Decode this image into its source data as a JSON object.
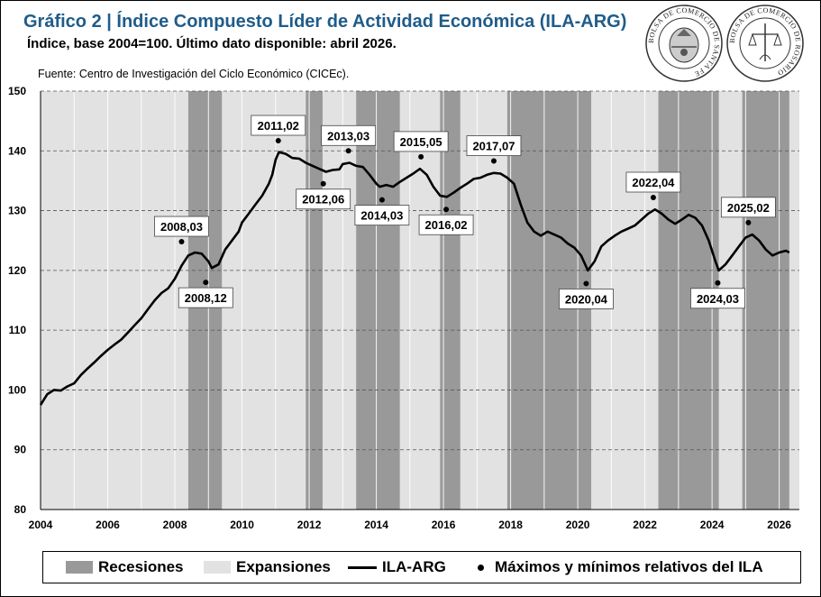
{
  "header": {
    "title": "Gráfico 2 | Índice Compuesto Líder de Actividad Económica (ILA-ARG)",
    "subtitle": "Índice, base 2004=100. Último dato disponible: abril 2026.",
    "source": "Fuente: Centro de Investigación del Ciclo Económico (CICEc)."
  },
  "seals": {
    "seal1_text": "BOLSA DE COMERCIO DE SANTA FE",
    "seal2_text": "BOLSA DE COMERCIO DE ROSARIO"
  },
  "colors": {
    "recession": "#999999",
    "expansion": "#e2e2e2",
    "line": "#000000",
    "title": "#1f5c8a"
  },
  "legend": {
    "recessions": "Recesiones",
    "expansions": "Expansiones",
    "line": "ILA-ARG",
    "points": "Máximos y mínimos relativos del ILA"
  },
  "chart_data": {
    "type": "line",
    "xlim": [
      2004,
      2026.6
    ],
    "ylim": [
      80,
      150
    ],
    "x_ticks": [
      "2004",
      "2006",
      "2008",
      "2010",
      "2012",
      "2014",
      "2016",
      "2018",
      "2020",
      "2022",
      "2024",
      "2026"
    ],
    "y_ticks": [
      "80",
      "90",
      "100",
      "110",
      "120",
      "130",
      "140",
      "150"
    ],
    "grid": "horizontal dashed",
    "legend_position": "bottom",
    "recessions": [
      [
        2008.4,
        2009.4
      ],
      [
        2011.9,
        2012.4
      ],
      [
        2013.4,
        2014.7
      ],
      [
        2015.9,
        2016.5
      ],
      [
        2017.9,
        2020.4
      ],
      [
        2022.4,
        2024.2
      ],
      [
        2024.9,
        2026.3
      ]
    ],
    "series": [
      {
        "name": "ILA-ARG",
        "points": [
          [
            2004.0,
            97.5
          ],
          [
            2004.2,
            99.3
          ],
          [
            2004.4,
            100.0
          ],
          [
            2004.6,
            99.9
          ],
          [
            2004.8,
            100.6
          ],
          [
            2005.0,
            101.1
          ],
          [
            2005.2,
            102.5
          ],
          [
            2005.4,
            103.6
          ],
          [
            2005.6,
            104.6
          ],
          [
            2005.8,
            105.7
          ],
          [
            2006.0,
            106.7
          ],
          [
            2006.2,
            107.6
          ],
          [
            2006.4,
            108.4
          ],
          [
            2006.6,
            109.6
          ],
          [
            2006.8,
            110.8
          ],
          [
            2007.0,
            112.0
          ],
          [
            2007.2,
            113.5
          ],
          [
            2007.4,
            115.0
          ],
          [
            2007.6,
            116.2
          ],
          [
            2007.8,
            117.0
          ],
          [
            2008.0,
            118.6
          ],
          [
            2008.2,
            120.8
          ],
          [
            2008.4,
            122.5
          ],
          [
            2008.6,
            123.0
          ],
          [
            2008.8,
            122.8
          ],
          [
            2009.0,
            121.5
          ],
          [
            2009.1,
            120.4
          ],
          [
            2009.3,
            121.0
          ],
          [
            2009.5,
            123.5
          ],
          [
            2009.7,
            125.0
          ],
          [
            2009.9,
            126.5
          ],
          [
            2010.0,
            128.0
          ],
          [
            2010.2,
            129.5
          ],
          [
            2010.4,
            131.0
          ],
          [
            2010.6,
            132.5
          ],
          [
            2010.8,
            134.5
          ],
          [
            2010.9,
            136.0
          ],
          [
            2011.0,
            138.5
          ],
          [
            2011.1,
            139.8
          ],
          [
            2011.3,
            139.5
          ],
          [
            2011.5,
            138.8
          ],
          [
            2011.7,
            138.7
          ],
          [
            2011.9,
            138.0
          ],
          [
            2012.1,
            137.5
          ],
          [
            2012.3,
            137.0
          ],
          [
            2012.5,
            136.5
          ],
          [
            2012.7,
            136.8
          ],
          [
            2012.9,
            136.9
          ],
          [
            2013.0,
            137.8
          ],
          [
            2013.2,
            138.0
          ],
          [
            2013.4,
            137.5
          ],
          [
            2013.6,
            137.3
          ],
          [
            2013.8,
            136.0
          ],
          [
            2014.0,
            134.5
          ],
          [
            2014.1,
            134.0
          ],
          [
            2014.3,
            134.3
          ],
          [
            2014.5,
            134.0
          ],
          [
            2014.7,
            134.8
          ],
          [
            2014.9,
            135.5
          ],
          [
            2015.1,
            136.2
          ],
          [
            2015.3,
            137.0
          ],
          [
            2015.5,
            136.0
          ],
          [
            2015.7,
            134.0
          ],
          [
            2015.9,
            132.5
          ],
          [
            2016.1,
            132.3
          ],
          [
            2016.3,
            133.0
          ],
          [
            2016.5,
            133.8
          ],
          [
            2016.7,
            134.5
          ],
          [
            2016.9,
            135.3
          ],
          [
            2017.1,
            135.5
          ],
          [
            2017.3,
            136.0
          ],
          [
            2017.5,
            136.3
          ],
          [
            2017.7,
            136.2
          ],
          [
            2017.9,
            135.5
          ],
          [
            2018.1,
            134.5
          ],
          [
            2018.3,
            131.0
          ],
          [
            2018.5,
            128.0
          ],
          [
            2018.7,
            126.5
          ],
          [
            2018.9,
            125.8
          ],
          [
            2019.1,
            126.5
          ],
          [
            2019.3,
            126.0
          ],
          [
            2019.5,
            125.5
          ],
          [
            2019.7,
            124.5
          ],
          [
            2019.9,
            123.8
          ],
          [
            2020.1,
            122.5
          ],
          [
            2020.3,
            120.0
          ],
          [
            2020.5,
            121.5
          ],
          [
            2020.7,
            124.0
          ],
          [
            2020.9,
            125.0
          ],
          [
            2021.1,
            125.8
          ],
          [
            2021.3,
            126.5
          ],
          [
            2021.5,
            127.0
          ],
          [
            2021.7,
            127.5
          ],
          [
            2021.9,
            128.5
          ],
          [
            2022.1,
            129.5
          ],
          [
            2022.3,
            130.2
          ],
          [
            2022.5,
            129.5
          ],
          [
            2022.7,
            128.5
          ],
          [
            2022.9,
            127.8
          ],
          [
            2023.1,
            128.5
          ],
          [
            2023.3,
            129.3
          ],
          [
            2023.5,
            128.8
          ],
          [
            2023.7,
            127.5
          ],
          [
            2023.9,
            125.0
          ],
          [
            2024.1,
            121.5
          ],
          [
            2024.2,
            120.0
          ],
          [
            2024.4,
            121.0
          ],
          [
            2024.6,
            122.5
          ],
          [
            2024.8,
            124.0
          ],
          [
            2025.0,
            125.5
          ],
          [
            2025.2,
            126.0
          ],
          [
            2025.4,
            125.0
          ],
          [
            2025.6,
            123.5
          ],
          [
            2025.8,
            122.5
          ],
          [
            2026.0,
            123.0
          ],
          [
            2026.2,
            123.3
          ],
          [
            2026.3,
            123.0
          ]
        ]
      }
    ],
    "extrema": [
      {
        "label": "2008,03",
        "x": 2008.2,
        "y": 124.8,
        "pos": "above"
      },
      {
        "label": "2008,12",
        "x": 2008.92,
        "y": 118.0,
        "pos": "below"
      },
      {
        "label": "2011,02",
        "x": 2011.08,
        "y": 141.7,
        "pos": "above"
      },
      {
        "label": "2012,06",
        "x": 2012.42,
        "y": 134.5,
        "pos": "below"
      },
      {
        "label": "2013,03",
        "x": 2013.17,
        "y": 140.0,
        "pos": "above"
      },
      {
        "label": "2014,03",
        "x": 2014.17,
        "y": 131.8,
        "pos": "below"
      },
      {
        "label": "2015,05",
        "x": 2015.33,
        "y": 139.0,
        "pos": "above"
      },
      {
        "label": "2016,02",
        "x": 2016.08,
        "y": 130.2,
        "pos": "below"
      },
      {
        "label": "2017,07",
        "x": 2017.5,
        "y": 138.3,
        "pos": "above"
      },
      {
        "label": "2020,04",
        "x": 2020.25,
        "y": 117.8,
        "pos": "below"
      },
      {
        "label": "2022,04",
        "x": 2022.25,
        "y": 132.2,
        "pos": "above"
      },
      {
        "label": "2024,03",
        "x": 2024.17,
        "y": 117.9,
        "pos": "below"
      },
      {
        "label": "2025,02",
        "x": 2025.08,
        "y": 128.0,
        "pos": "above"
      }
    ]
  }
}
